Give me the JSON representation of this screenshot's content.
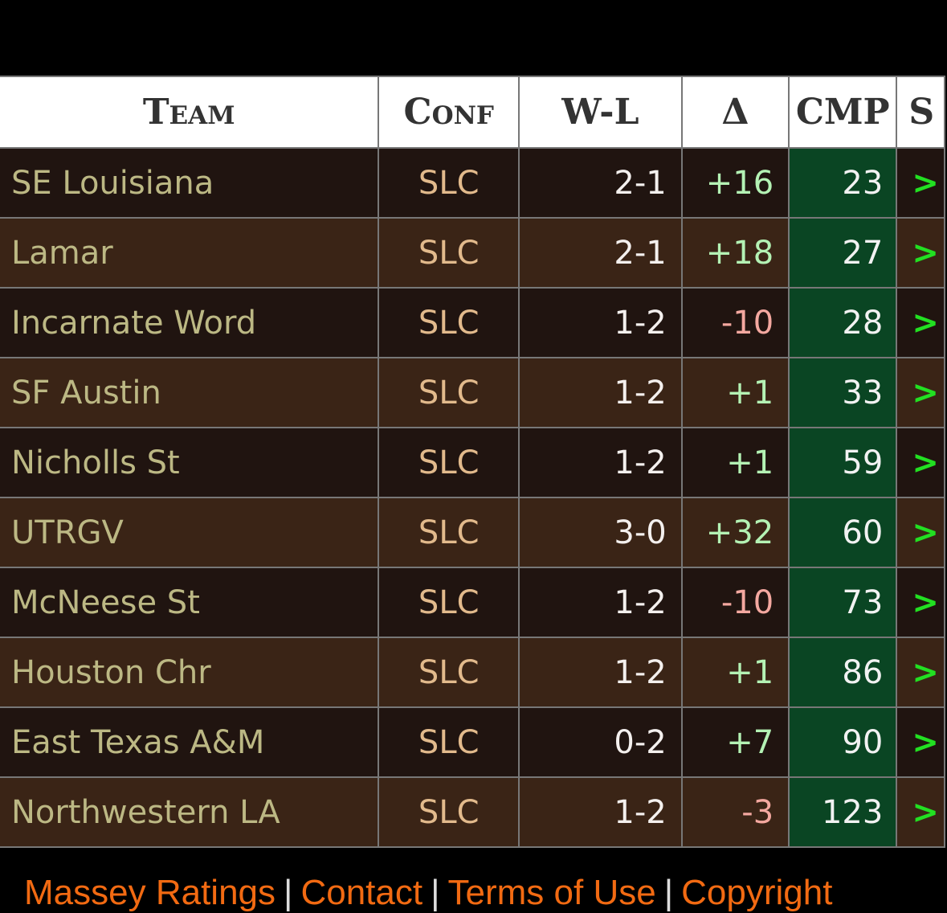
{
  "headers": {
    "team": "Team",
    "conf": "Conf",
    "wl": "W-L",
    "delta": "Δ",
    "cmp": "CMP",
    "next": "S"
  },
  "rows": [
    {
      "team": "SE Louisiana",
      "conf": "SLC",
      "wl": "2-1",
      "delta": "+16",
      "cmp": "23",
      "arrow": ">"
    },
    {
      "team": "Lamar",
      "conf": "SLC",
      "wl": "2-1",
      "delta": "+18",
      "cmp": "27",
      "arrow": ">"
    },
    {
      "team": "Incarnate Word",
      "conf": "SLC",
      "wl": "1-2",
      "delta": "-10",
      "cmp": "28",
      "arrow": ">"
    },
    {
      "team": "SF Austin",
      "conf": "SLC",
      "wl": "1-2",
      "delta": "+1",
      "cmp": "33",
      "arrow": ">"
    },
    {
      "team": "Nicholls St",
      "conf": "SLC",
      "wl": "1-2",
      "delta": "+1",
      "cmp": "59",
      "arrow": ">"
    },
    {
      "team": "UTRGV",
      "conf": "SLC",
      "wl": "3-0",
      "delta": "+32",
      "cmp": "60",
      "arrow": ">"
    },
    {
      "team": "McNeese St",
      "conf": "SLC",
      "wl": "1-2",
      "delta": "-10",
      "cmp": "73",
      "arrow": ">"
    },
    {
      "team": "Houston Chr",
      "conf": "SLC",
      "wl": "1-2",
      "delta": "+1",
      "cmp": "86",
      "arrow": ">"
    },
    {
      "team": "East Texas A&M",
      "conf": "SLC",
      "wl": "0-2",
      "delta": "+7",
      "cmp": "90",
      "arrow": ">"
    },
    {
      "team": "Northwestern LA",
      "conf": "SLC",
      "wl": "1-2",
      "delta": "-3",
      "cmp": "123",
      "arrow": ">"
    }
  ],
  "footer": {
    "links": [
      "Massey Ratings",
      "Contact",
      "Terms of Use",
      "Copyright"
    ],
    "separator": "|"
  },
  "colors": {
    "row_dark": "#201410",
    "row_light": "#3a2416",
    "cmp_bg": "#0a4523",
    "positive": "#b4f2b4",
    "negative": "#f4a8a0",
    "link": "#f26a12"
  }
}
